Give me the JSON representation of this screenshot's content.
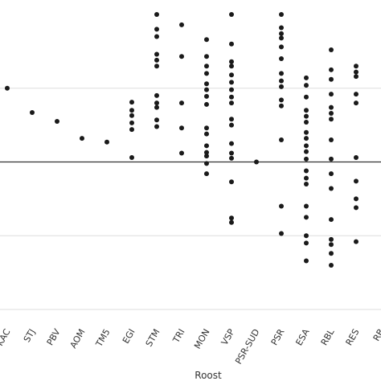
{
  "chart_data": {
    "type": "scatter",
    "title": "",
    "xlabel": "Roost",
    "ylabel": "",
    "grid": true,
    "reference_line_y": 0,
    "ylim": [
      -2,
      2
    ],
    "categories": [
      "KAC",
      "STJ",
      "PBV",
      "AOM",
      "TM5",
      "EGI",
      "STM",
      "TRI",
      "MON",
      "VSP",
      "PSR-SUD",
      "PSR",
      "ESA",
      "RBL",
      "RES",
      "RB"
    ],
    "series": [
      {
        "values": [
          {
            "x": "KAC",
            "y": 1.0
          },
          {
            "x": "STJ",
            "y": 0.67
          },
          {
            "x": "PBV",
            "y": 0.55
          },
          {
            "x": "AOM",
            "y": 0.32
          },
          {
            "x": "TM5",
            "y": 0.27
          },
          {
            "x": "EGI",
            "y": 0.81
          },
          {
            "x": "EGI",
            "y": 0.7
          },
          {
            "x": "EGI",
            "y": 0.63
          },
          {
            "x": "EGI",
            "y": 0.53
          },
          {
            "x": "EGI",
            "y": 0.44
          },
          {
            "x": "EGI",
            "y": 0.06
          },
          {
            "x": "STM",
            "y": 2.0
          },
          {
            "x": "STM",
            "y": 1.8
          },
          {
            "x": "STM",
            "y": 1.7
          },
          {
            "x": "STM",
            "y": 1.46
          },
          {
            "x": "STM",
            "y": 1.38
          },
          {
            "x": "STM",
            "y": 1.3
          },
          {
            "x": "STM",
            "y": 0.9
          },
          {
            "x": "STM",
            "y": 0.8
          },
          {
            "x": "STM",
            "y": 0.74
          },
          {
            "x": "STM",
            "y": 0.57
          },
          {
            "x": "STM",
            "y": 0.48
          },
          {
            "x": "TRI",
            "y": 1.86
          },
          {
            "x": "TRI",
            "y": 1.43
          },
          {
            "x": "TRI",
            "y": 0.8
          },
          {
            "x": "TRI",
            "y": 0.46
          },
          {
            "x": "TRI",
            "y": 0.12
          },
          {
            "x": "MON",
            "y": 1.66
          },
          {
            "x": "MON",
            "y": 1.43
          },
          {
            "x": "MON",
            "y": 1.3
          },
          {
            "x": "MON",
            "y": 1.2
          },
          {
            "x": "MON",
            "y": 1.06
          },
          {
            "x": "MON",
            "y": 0.98
          },
          {
            "x": "MON",
            "y": 0.89
          },
          {
            "x": "MON",
            "y": 0.78
          },
          {
            "x": "MON",
            "y": 0.46
          },
          {
            "x": "MON",
            "y": 0.38
          },
          {
            "x": "MON",
            "y": 0.22
          },
          {
            "x": "MON",
            "y": 0.13
          },
          {
            "x": "MON",
            "y": 0.08
          },
          {
            "x": "MON",
            "y": -0.02
          },
          {
            "x": "MON",
            "y": -0.16
          },
          {
            "x": "VSP",
            "y": 2.0
          },
          {
            "x": "VSP",
            "y": 1.6
          },
          {
            "x": "VSP",
            "y": 1.36
          },
          {
            "x": "VSP",
            "y": 1.3
          },
          {
            "x": "VSP",
            "y": 1.18
          },
          {
            "x": "VSP",
            "y": 1.08
          },
          {
            "x": "VSP",
            "y": 0.98
          },
          {
            "x": "VSP",
            "y": 0.88
          },
          {
            "x": "VSP",
            "y": 0.8
          },
          {
            "x": "VSP",
            "y": 0.58
          },
          {
            "x": "VSP",
            "y": 0.5
          },
          {
            "x": "VSP",
            "y": 0.25
          },
          {
            "x": "VSP",
            "y": 0.12
          },
          {
            "x": "VSP",
            "y": 0.05
          },
          {
            "x": "VSP",
            "y": -0.27
          },
          {
            "x": "VSP",
            "y": -0.76
          },
          {
            "x": "VSP",
            "y": -0.82
          },
          {
            "x": "PSR-SUD",
            "y": 0.0
          },
          {
            "x": "PSR",
            "y": 2.0
          },
          {
            "x": "PSR",
            "y": 1.82
          },
          {
            "x": "PSR",
            "y": 1.74
          },
          {
            "x": "PSR",
            "y": 1.68
          },
          {
            "x": "PSR",
            "y": 1.56
          },
          {
            "x": "PSR",
            "y": 1.4
          },
          {
            "x": "PSR",
            "y": 1.2
          },
          {
            "x": "PSR",
            "y": 1.1
          },
          {
            "x": "PSR",
            "y": 1.02
          },
          {
            "x": "PSR",
            "y": 0.84
          },
          {
            "x": "PSR",
            "y": 0.76
          },
          {
            "x": "PSR",
            "y": 0.3
          },
          {
            "x": "PSR",
            "y": -0.6
          },
          {
            "x": "PSR",
            "y": -0.97
          },
          {
            "x": "ESA",
            "y": 1.14
          },
          {
            "x": "ESA",
            "y": 1.04
          },
          {
            "x": "ESA",
            "y": 0.88
          },
          {
            "x": "ESA",
            "y": 0.7
          },
          {
            "x": "ESA",
            "y": 0.62
          },
          {
            "x": "ESA",
            "y": 0.54
          },
          {
            "x": "ESA",
            "y": 0.4
          },
          {
            "x": "ESA",
            "y": 0.32
          },
          {
            "x": "ESA",
            "y": 0.22
          },
          {
            "x": "ESA",
            "y": 0.14
          },
          {
            "x": "ESA",
            "y": 0.04
          },
          {
            "x": "ESA",
            "y": -0.12
          },
          {
            "x": "ESA",
            "y": -0.22
          },
          {
            "x": "ESA",
            "y": -0.3
          },
          {
            "x": "ESA",
            "y": -0.6
          },
          {
            "x": "ESA",
            "y": -0.75
          },
          {
            "x": "ESA",
            "y": -1.0
          },
          {
            "x": "ESA",
            "y": -1.1
          },
          {
            "x": "ESA",
            "y": -1.34
          },
          {
            "x": "RBL",
            "y": 1.52
          },
          {
            "x": "RBL",
            "y": 1.25
          },
          {
            "x": "RBL",
            "y": 1.12
          },
          {
            "x": "RBL",
            "y": 0.92
          },
          {
            "x": "RBL",
            "y": 0.74
          },
          {
            "x": "RBL",
            "y": 0.66
          },
          {
            "x": "RBL",
            "y": 0.58
          },
          {
            "x": "RBL",
            "y": 0.3
          },
          {
            "x": "RBL",
            "y": 0.04
          },
          {
            "x": "RBL",
            "y": -0.16
          },
          {
            "x": "RBL",
            "y": -0.36
          },
          {
            "x": "RBL",
            "y": -0.78
          },
          {
            "x": "RBL",
            "y": -1.05
          },
          {
            "x": "RBL",
            "y": -1.12
          },
          {
            "x": "RBL",
            "y": -1.24
          },
          {
            "x": "RBL",
            "y": -1.4
          },
          {
            "x": "RES",
            "y": 1.3
          },
          {
            "x": "RES",
            "y": 1.22
          },
          {
            "x": "RES",
            "y": 1.16
          },
          {
            "x": "RES",
            "y": 0.92
          },
          {
            "x": "RES",
            "y": 0.8
          },
          {
            "x": "RES",
            "y": 0.06
          },
          {
            "x": "RES",
            "y": -0.26
          },
          {
            "x": "RES",
            "y": -0.5
          },
          {
            "x": "RES",
            "y": -0.62
          },
          {
            "x": "RES",
            "y": -1.08
          }
        ]
      }
    ],
    "colors": {
      "marker": "#1a1a1a",
      "grid": "#dddddd",
      "reference_line": "#333333",
      "text": "#333333"
    }
  }
}
